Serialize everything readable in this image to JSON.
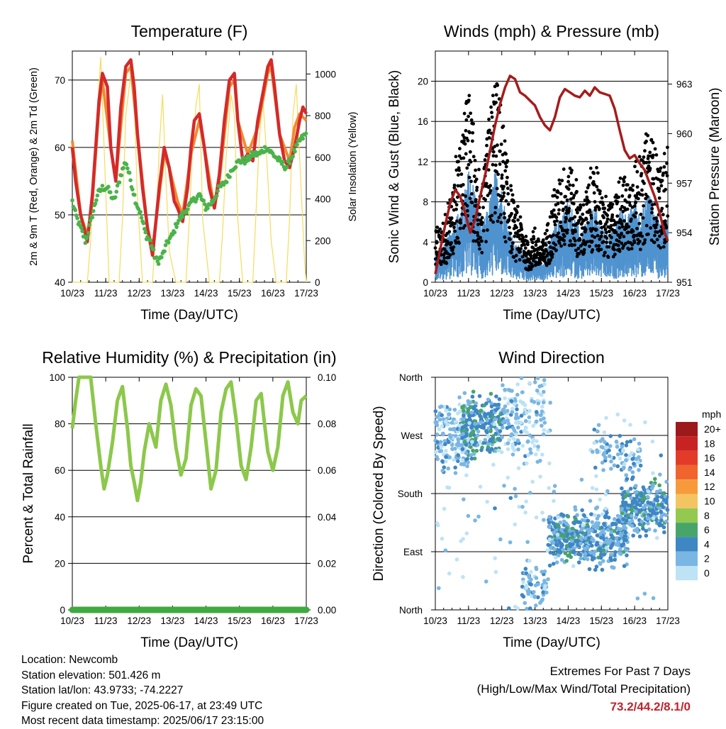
{
  "station": {
    "location": "Location: Newcomb",
    "elevation": "Station elevation: 501.426 m",
    "latlon": "Station lat/lon: 43.9733; -74.2227",
    "created": "Figure created on Tue, 2025-06-17, at 23:49 UTC",
    "timestamp": "Most recent data timestamp: 2025/06/17 23:15:00"
  },
  "extremes": {
    "title": "Extremes For Past 7 Days",
    "subtitle": "(High/Low/Max Wind/Total Precipitation)",
    "values": "73.2/44.2/8.1/0"
  },
  "colors": {
    "temp_2m": "#d42a2a",
    "temp_9m": "#f28a30",
    "dewpoint": "#4bb34b",
    "solar": "#f5dc5a",
    "wind": "#4f93cf",
    "gust": "#000000",
    "pressure": "#a51c1c",
    "rh": "#8cc84b",
    "precip": "#3faa3f"
  },
  "chart_data": [
    {
      "type": "line",
      "title": "Temperature (F)",
      "xlabel": "Time (Day/UTC)",
      "ylabel": "2m & 9m T (Red, Orange) & 2m Td (Green)",
      "y2label": "Solar Insolation (Yellow)",
      "x_ticks": [
        "10/23",
        "11/23",
        "12/23",
        "13/23",
        "14/23",
        "15/23",
        "16/23",
        "17/23"
      ],
      "xlim": [
        10,
        17
      ],
      "ylim": [
        40,
        74.3
      ],
      "y_ticks": [
        40,
        50,
        60,
        70
      ],
      "y2lim": [
        0,
        1110
      ],
      "y2_ticks": [
        0,
        200,
        400,
        600,
        800,
        1000
      ],
      "grid": "horizontal",
      "series": [
        {
          "name": "2m T",
          "axis": "y",
          "x": [
            10.0,
            10.1,
            10.25,
            10.45,
            10.6,
            10.8,
            10.9,
            11.05,
            11.15,
            11.3,
            11.45,
            11.6,
            11.75,
            11.85,
            11.95,
            12.1,
            12.25,
            12.4,
            12.5,
            12.6,
            12.75,
            12.9,
            13.05,
            13.15,
            13.3,
            13.45,
            13.55,
            13.65,
            13.8,
            13.95,
            14.1,
            14.25,
            14.4,
            14.55,
            14.7,
            14.85,
            14.95,
            15.1,
            15.25,
            15.4,
            15.55,
            15.7,
            15.85,
            15.95,
            16.05,
            16.2,
            16.35,
            16.5,
            16.65,
            16.8,
            16.9,
            17.0
          ],
          "y": [
            60,
            55,
            50,
            46,
            53,
            67,
            71,
            69,
            60,
            55,
            66,
            72,
            73,
            69,
            62,
            54,
            48,
            44,
            49,
            54,
            60,
            57,
            52,
            51,
            49,
            54,
            60,
            64,
            65,
            60,
            54,
            51,
            56,
            64,
            70,
            71,
            64,
            58,
            59,
            58,
            64,
            68,
            72,
            73,
            69,
            62,
            58,
            57,
            60,
            64,
            66,
            65
          ]
        },
        {
          "name": "9m T",
          "axis": "y",
          "x": [
            10.0,
            10.25,
            10.45,
            10.6,
            10.8,
            10.9,
            11.15,
            11.3,
            11.6,
            11.75,
            11.95,
            12.25,
            12.4,
            12.6,
            12.75,
            12.9,
            13.15,
            13.3,
            13.55,
            13.8,
            13.95,
            14.25,
            14.4,
            14.7,
            14.85,
            14.95,
            15.25,
            15.55,
            15.85,
            15.95,
            16.2,
            16.5,
            16.65,
            16.8,
            17.0
          ],
          "y": [
            61,
            50,
            47,
            52,
            66,
            70,
            60,
            55,
            71,
            72,
            62,
            48,
            45,
            53,
            59,
            57,
            52,
            50,
            59,
            64,
            60,
            51,
            55,
            69,
            70,
            64,
            59,
            63,
            71,
            72,
            62,
            58,
            63,
            65,
            64
          ]
        },
        {
          "name": "2m Td",
          "axis": "y",
          "x": [
            10.0,
            10.1,
            10.25,
            10.4,
            10.6,
            10.75,
            10.9,
            11.05,
            11.25,
            11.45,
            11.6,
            11.75,
            11.9,
            12.05,
            12.2,
            12.35,
            12.45,
            12.55,
            12.7,
            12.85,
            13.0,
            13.15,
            13.3,
            13.45,
            13.6,
            13.8,
            14.0,
            14.2,
            14.4,
            14.6,
            14.8,
            15.0,
            15.2,
            15.4,
            15.6,
            15.8,
            16.0,
            16.2,
            16.4,
            16.6,
            16.8,
            17.0
          ],
          "y": [
            52,
            50,
            48,
            46,
            50,
            53,
            54,
            54,
            52,
            56,
            58,
            55,
            52,
            50,
            47,
            46,
            44,
            43,
            44,
            46,
            47,
            49,
            50,
            51,
            52,
            53,
            51,
            52,
            54,
            55,
            57,
            58,
            58,
            59,
            59,
            60,
            59,
            58,
            57,
            59,
            61,
            62
          ]
        },
        {
          "name": "Solar",
          "axis": "y2",
          "x": [
            10.0,
            10.2,
            10.45,
            10.55,
            10.7,
            10.85,
            10.95,
            11.1,
            11.25,
            11.4,
            11.5,
            11.6,
            11.75,
            11.85,
            11.95,
            12.1,
            12.25,
            12.4,
            12.5,
            12.6,
            12.7,
            12.8,
            12.9,
            13.1,
            13.3,
            13.4,
            13.5,
            13.6,
            13.7,
            13.8,
            13.9,
            14.1,
            14.3,
            14.4,
            14.5,
            14.6,
            14.75,
            14.85,
            14.95,
            15.1,
            15.3,
            15.4,
            15.5,
            15.6,
            15.7,
            15.8,
            15.95,
            16.1,
            16.3,
            16.4,
            16.5,
            16.6,
            16.7,
            16.8,
            16.95,
            17.0
          ],
          "y": [
            0,
            0,
            0,
            200,
            700,
            1080,
            650,
            0,
            0,
            0,
            300,
            800,
            1000,
            880,
            400,
            0,
            0,
            0,
            250,
            650,
            900,
            500,
            150,
            0,
            0,
            0,
            300,
            650,
            850,
            950,
            300,
            0,
            0,
            0,
            250,
            600,
            900,
            800,
            300,
            0,
            0,
            0,
            350,
            700,
            880,
            650,
            200,
            0,
            0,
            0,
            300,
            800,
            950,
            600,
            100,
            0
          ]
        }
      ]
    },
    {
      "type": "line",
      "title": "Winds (mph) & Pressure (mb)",
      "xlabel": "Time (Day/UTC)",
      "ylabel": "Sonic Wind & Gust (Blue, Black)",
      "y2label": "Station Pressure (Maroon)",
      "x_ticks": [
        "10/23",
        "11/23",
        "12/23",
        "13/23",
        "14/23",
        "15/23",
        "16/23",
        "17/23"
      ],
      "xlim": [
        10,
        17
      ],
      "ylim": [
        0,
        23
      ],
      "y_ticks": [
        0,
        4,
        8,
        12,
        16,
        20
      ],
      "y2lim": [
        951,
        965
      ],
      "y2_ticks": [
        951,
        954,
        957,
        960,
        963
      ],
      "grid": "horizontal",
      "series": [
        {
          "name": "Wind",
          "axis": "y",
          "x": [
            10.0,
            10.2,
            10.4,
            10.6,
            10.8,
            11.0,
            11.2,
            11.4,
            11.6,
            11.8,
            12.0,
            12.2,
            12.4,
            12.6,
            12.8,
            13.0,
            13.2,
            13.4,
            13.6,
            13.8,
            14.0,
            14.2,
            14.4,
            14.6,
            14.8,
            15.0,
            15.2,
            15.4,
            15.6,
            15.8,
            16.0,
            16.2,
            16.4,
            16.6,
            16.8,
            17.0
          ],
          "y": [
            1.5,
            1.8,
            2.5,
            3.5,
            4.0,
            6.0,
            5.0,
            3.0,
            4.0,
            6.0,
            5.0,
            3.0,
            2.0,
            2.0,
            1.0,
            1.5,
            1.0,
            2.0,
            3.0,
            3.5,
            4.5,
            3.5,
            2.5,
            3.5,
            4.0,
            3.0,
            2.5,
            3.0,
            4.0,
            3.5,
            4.5,
            3.5,
            5.0,
            4.0,
            3.0,
            3.5
          ]
        },
        {
          "name": "Gust",
          "axis": "y",
          "x": [
            10.0,
            10.2,
            10.4,
            10.6,
            10.8,
            11.0,
            11.2,
            11.4,
            11.6,
            11.8,
            12.0,
            12.2,
            12.4,
            12.6,
            12.8,
            13.0,
            13.2,
            13.4,
            13.6,
            13.8,
            14.0,
            14.2,
            14.4,
            14.6,
            14.8,
            15.0,
            15.2,
            15.4,
            15.6,
            15.8,
            16.0,
            16.2,
            16.4,
            16.6,
            16.8,
            17.0
          ],
          "y": [
            5,
            4,
            6,
            9,
            12,
            16,
            10,
            7,
            13,
            17,
            14,
            9,
            6,
            5,
            3,
            4,
            3,
            5,
            7,
            9,
            10,
            8,
            6,
            8,
            9,
            7,
            6,
            7,
            9,
            8,
            10,
            9,
            13,
            11,
            9,
            10
          ]
        },
        {
          "name": "Pressure",
          "axis": "y2",
          "x": [
            10.0,
            10.15,
            10.3,
            10.45,
            10.6,
            10.75,
            10.9,
            11.05,
            11.2,
            11.35,
            11.5,
            11.65,
            11.8,
            11.95,
            12.1,
            12.25,
            12.4,
            12.55,
            12.7,
            12.85,
            13.0,
            13.15,
            13.3,
            13.45,
            13.6,
            13.75,
            13.9,
            14.05,
            14.2,
            14.35,
            14.5,
            14.65,
            14.8,
            14.95,
            15.1,
            15.25,
            15.4,
            15.55,
            15.7,
            15.85,
            16.0,
            16.15,
            16.3,
            16.45,
            16.6,
            16.75,
            16.9,
            17.0
          ],
          "y": [
            951.5,
            953.0,
            954.5,
            955.8,
            956.6,
            956.2,
            955.2,
            954.0,
            954.8,
            956.2,
            957.5,
            959.0,
            960.5,
            961.8,
            962.8,
            963.5,
            963.3,
            962.5,
            962.3,
            962.0,
            961.7,
            961.0,
            960.5,
            960.2,
            961.0,
            962.2,
            962.7,
            962.5,
            962.3,
            962.2,
            962.6,
            962.3,
            962.8,
            962.5,
            962.4,
            962.3,
            961.5,
            960.2,
            959.0,
            958.5,
            958.7,
            958.2,
            957.8,
            957.0,
            956.2,
            955.2,
            954.0,
            953.5
          ]
        }
      ]
    },
    {
      "type": "line",
      "title": "Relative Humidity (%) & Precipitation (in)",
      "xlabel": "Time (Day/UTC)",
      "ylabel": "Percent & Total Rainfall",
      "x_ticks": [
        "10/23",
        "11/23",
        "12/23",
        "13/23",
        "14/23",
        "15/23",
        "16/23",
        "17/23"
      ],
      "xlim": [
        10,
        17
      ],
      "ylim": [
        0,
        100
      ],
      "y_ticks": [
        0,
        20,
        40,
        60,
        80,
        100
      ],
      "y2lim": [
        0,
        0.1
      ],
      "y2_ticks": [
        "0.00",
        "0.02",
        "0.04",
        "0.06",
        "0.08",
        "0.10"
      ],
      "grid": "horizontal",
      "series": [
        {
          "name": "RH",
          "axis": "y",
          "x": [
            10.0,
            10.1,
            10.2,
            10.35,
            10.55,
            10.7,
            10.85,
            10.95,
            11.05,
            11.2,
            11.35,
            11.5,
            11.65,
            11.75,
            11.85,
            11.95,
            12.05,
            12.15,
            12.3,
            12.5,
            12.65,
            12.8,
            12.95,
            13.1,
            13.25,
            13.4,
            13.55,
            13.7,
            13.85,
            14.0,
            14.15,
            14.3,
            14.45,
            14.6,
            14.75,
            14.9,
            15.05,
            15.2,
            15.35,
            15.5,
            15.65,
            15.75,
            15.85,
            16.0,
            16.15,
            16.3,
            16.45,
            16.6,
            16.75,
            16.85,
            17.0
          ],
          "y": [
            78,
            90,
            100,
            100,
            100,
            80,
            62,
            52,
            58,
            72,
            90,
            96,
            78,
            62,
            55,
            47,
            55,
            68,
            80,
            70,
            90,
            97,
            88,
            70,
            58,
            65,
            88,
            95,
            92,
            72,
            52,
            60,
            85,
            95,
            98,
            82,
            62,
            56,
            70,
            90,
            93,
            80,
            68,
            60,
            70,
            92,
            98,
            85,
            80,
            90,
            92
          ]
        },
        {
          "name": "Precipitation",
          "axis": "y2",
          "x": [
            10.0,
            17.0
          ],
          "y": [
            0,
            0
          ]
        }
      ]
    },
    {
      "type": "scatter",
      "title": "Wind Direction",
      "xlabel": "Time (Day/UTC)",
      "ylabel": "Direction (Colored By Speed)",
      "x_ticks": [
        "10/23",
        "11/23",
        "12/23",
        "13/23",
        "14/23",
        "15/23",
        "16/23",
        "17/23"
      ],
      "xlim": [
        10,
        17
      ],
      "ylim": [
        0,
        360
      ],
      "y_tick_labels": [
        "North",
        "East",
        "South",
        "West",
        "North"
      ],
      "grid": "horizontal",
      "legend": {
        "title": "mph",
        "labels": [
          "20+",
          "18",
          "16",
          "14",
          "12",
          "10",
          "8",
          "6",
          "4",
          "2",
          "0"
        ],
        "colors": [
          "#9c1a1a",
          "#c82323",
          "#e33b2a",
          "#f0642e",
          "#f79a3c",
          "#f5c462",
          "#93c94f",
          "#47a56a",
          "#3f86c4",
          "#7ab6e3",
          "#bde3f5"
        ]
      },
      "clusters": [
        {
          "x0": 10.0,
          "x1": 11.0,
          "dir": 270,
          "spread": 70,
          "speed": 2.0,
          "n": 170
        },
        {
          "x0": 10.8,
          "x1": 12.0,
          "dir": 285,
          "spread": 55,
          "speed": 4.0,
          "n": 220
        },
        {
          "x0": 12.0,
          "x1": 13.3,
          "dir": 300,
          "spread": 80,
          "speed": 1.5,
          "n": 160
        },
        {
          "x0": 12.6,
          "x1": 13.4,
          "dir": 40,
          "spread": 40,
          "speed": 2.0,
          "n": 60
        },
        {
          "x0": 13.4,
          "x1": 14.6,
          "dir": 110,
          "spread": 45,
          "speed": 3.5,
          "n": 240
        },
        {
          "x0": 14.5,
          "x1": 15.8,
          "dir": 110,
          "spread": 55,
          "speed": 3.0,
          "n": 240
        },
        {
          "x0": 15.6,
          "x1": 17.0,
          "dir": 160,
          "spread": 50,
          "speed": 3.5,
          "n": 240
        },
        {
          "x0": 14.8,
          "x1": 16.2,
          "dir": 240,
          "spread": 40,
          "speed": 2.5,
          "n": 80
        },
        {
          "x0": 10.0,
          "x1": 17.0,
          "dir": 180,
          "spread": 200,
          "speed": 1.0,
          "n": 140
        }
      ]
    }
  ]
}
